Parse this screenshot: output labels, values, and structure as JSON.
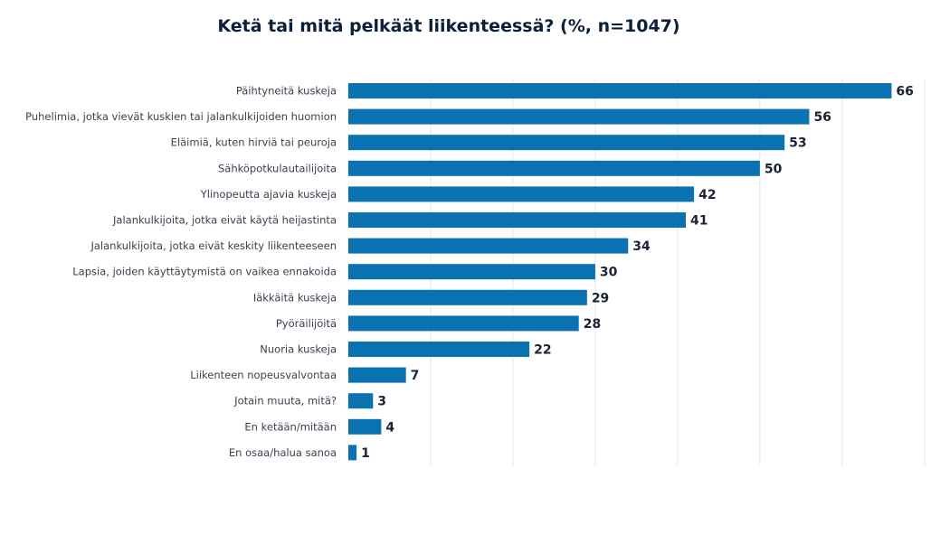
{
  "chart_data": {
    "type": "bar",
    "orientation": "horizontal",
    "title": "Ketä tai mitä pelkäät liikenteessä? (%, n=1047)",
    "xlabel": "",
    "ylabel": "",
    "xlim": [
      0,
      72
    ],
    "grid": true,
    "color": "#0a72b0",
    "categories": [
      "Päihtyneitä kuskeja",
      "Puhelimia, jotka vievät kuskien tai jalankulkijoiden huomion",
      "Eläimiä, kuten hirviä tai peuroja",
      "Sähköpotkulautailijoita",
      "Ylinopeutta ajavia kuskeja",
      "Jalankulkijoita, jotka eivät käytä heijastinta",
      "Jalankulkijoita, jotka eivät keskity liikenteeseen",
      "Lapsia, joiden käyttäytymistä on vaikea ennakoida",
      "Iäkkäitä kuskeja",
      "Pyöräilijöitä",
      "Nuoria kuskeja",
      "Liikenteen nopeusvalvontaa",
      "Jotain muuta, mitä?",
      "En ketään/mitään",
      "En osaa/halua sanoa"
    ],
    "values": [
      66,
      56,
      53,
      50,
      42,
      41,
      34,
      30,
      29,
      28,
      22,
      7,
      3,
      4,
      1
    ]
  }
}
